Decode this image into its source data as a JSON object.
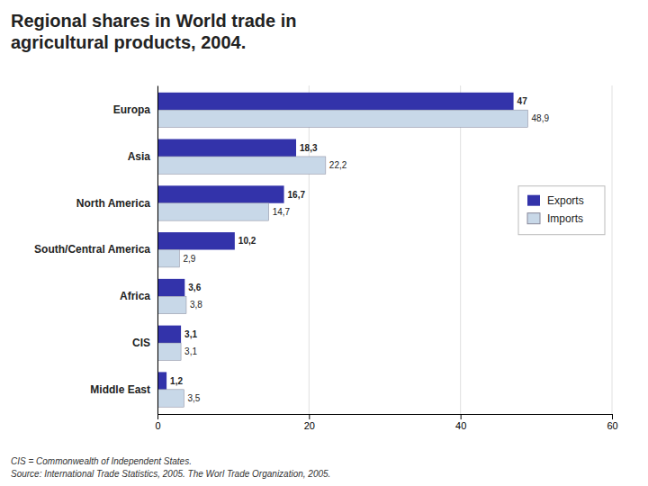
{
  "chart_data": {
    "type": "bar",
    "orientation": "horizontal",
    "title": "Regional shares in World trade in\nagricultural products, 2004.",
    "categories": [
      "Europa",
      "Asia",
      "North America",
      "South/Central America",
      "Africa",
      "CIS",
      "Middle East"
    ],
    "series": [
      {
        "name": "Exports",
        "color": "#3333aa",
        "values": [
          47.0,
          18.3,
          16.7,
          10.2,
          3.6,
          3.1,
          1.2
        ],
        "value_labels": [
          "47",
          "18,3",
          "16,7",
          "10,2",
          "3,6",
          "3,1",
          "1,2"
        ]
      },
      {
        "name": "Imports",
        "color": "#c8d8e8",
        "values": [
          48.9,
          22.2,
          14.7,
          2.9,
          3.8,
          3.1,
          3.5
        ],
        "value_labels": [
          "48,9",
          "22,2",
          "14,7",
          "2,9",
          "3,8",
          "3,1",
          "3,5"
        ]
      }
    ],
    "xlim": [
      0,
      60
    ],
    "xticks": [
      0,
      20,
      40,
      60
    ],
    "grid": true,
    "legend": "right",
    "data_labels": true,
    "annotations": [
      "CIS = Commonwealth of Independent States.",
      "Source: International Trade Statistics, 2005. The Worl Trade Organization, 2005."
    ]
  }
}
